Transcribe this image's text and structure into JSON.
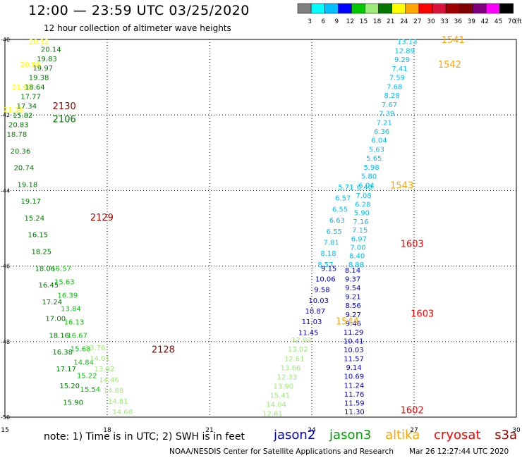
{
  "header": {
    "title": "12:00 — 23:59 UTC 03/25/2020",
    "subtitle": "12 hour collection of altimeter wave heights"
  },
  "colorbar": {
    "labels": [
      "3",
      "6",
      "9",
      "12",
      "15",
      "18",
      "21",
      "24",
      "27",
      "30",
      "33",
      "36",
      "39",
      "42",
      "45",
      "70"
    ],
    "unit": "(ft)",
    "colors": [
      "#808080",
      "#00ffff",
      "#00bfff",
      "#0000ff",
      "#00c800",
      "#9eea7b",
      "#007800",
      "#ffff00",
      "#ffa500",
      "#ff0000",
      "#dc143c",
      "#a00000",
      "#800000",
      "#800080",
      "#ff00ff",
      "#000000"
    ]
  },
  "note": "note:  1) Time is in UTC;  2) SWH is in feet",
  "legend": [
    {
      "name": "jason2",
      "color": "#0000cc"
    },
    {
      "name": "jason3",
      "color": "#00a000"
    },
    {
      "name": "altika",
      "color": "#ffa500"
    },
    {
      "name": "cryosat",
      "color": "#ff0000"
    },
    {
      "name": "s3a",
      "color": "#a00000"
    }
  ],
  "footer": {
    "credit": "NOAA/NESDIS Center for Satellite Applications and Research",
    "timestamp": "Mar 26 12:27:44 UTC 2020"
  },
  "chart_data": {
    "type": "scatter",
    "xlim": [
      15,
      30
    ],
    "ylim": [
      -50,
      -40
    ],
    "x_ticks": [
      "15",
      "18",
      "21",
      "24",
      "27",
      "30"
    ],
    "y_ticks": [
      "-50",
      "-48",
      "-46",
      "-44",
      "-42",
      "-40"
    ],
    "grid": true,
    "tracks": [
      {
        "x0": 16.0,
        "y0": -40.05,
        "x1": 15.25,
        "y1": -41.85,
        "color": "#ffff00",
        "values": [
          "20.12",
          "20.88",
          "21.82",
          "21.38"
        ],
        "show": [
          0,
          1,
          2,
          3
        ]
      },
      {
        "x0": 16.35,
        "y0": -40.25,
        "x1": 15.4,
        "y1": -42.25,
        "color": "#007800",
        "values": [
          "20.14",
          "19.83",
          "19.97",
          "19.38",
          "18.64",
          "17.77",
          "17.34",
          "15.82",
          "20.83"
        ],
        "show": [
          0,
          1,
          2,
          3,
          4,
          5,
          6,
          7,
          8
        ]
      },
      {
        "x0": 15.35,
        "y0": -42.5,
        "x1": 17.0,
        "y1": -49.6,
        "color": "#007800",
        "values": [
          "18.78",
          "20.36",
          "20.74",
          "19.18",
          "19.17",
          "15.24",
          "16.15",
          "18.25",
          "18.06",
          "16.45",
          "17.24",
          "17.00",
          "18.16",
          "16.38",
          "17.17",
          "15.20",
          "15.90"
        ],
        "show": []
      },
      {
        "x0": 16.65,
        "y0": -46.05,
        "x1": 17.5,
        "y1": -49.25,
        "color": "#00c800",
        "values": [
          "16.57",
          "15.63",
          "16.39",
          "13.84",
          "16.13",
          "16.67",
          "15.68",
          "14.84",
          "15.22",
          "15.54"
        ],
        "show": []
      },
      {
        "x0": 17.65,
        "y0": -48.15,
        "x1": 18.45,
        "y1": -49.85,
        "color": "#9eea7b",
        "values": [
          "13.76",
          "14.01",
          "13.02",
          "14.46",
          "14.88",
          "14.81",
          "14.68"
        ],
        "show": []
      },
      {
        "x0": 26.8,
        "y0": -40.05,
        "x1": 25.6,
        "y1": -43.85,
        "color": "#00bfff",
        "values": [
          "13.13",
          "12.89",
          "9.29",
          "7.41",
          "7.59",
          "7.68",
          "8.28",
          "7.67",
          "7.39",
          "7.21",
          "6.36",
          "6.04",
          "5.63",
          "5.65",
          "5.98",
          "5.80",
          "6.04"
        ],
        "show": []
      },
      {
        "x0": 25.55,
        "y0": -43.9,
        "x1": 25.3,
        "y1": -45.95,
        "color": "#00bfff",
        "values": [
          "6.40",
          "7.08",
          "6.28",
          "5.90",
          "7.16",
          "7.15",
          "6.97",
          "7.00",
          "8.40",
          "8.88"
        ],
        "show": []
      },
      {
        "x0": 25.2,
        "y0": -46.1,
        "x1": 25.25,
        "y1": -49.85,
        "color": "#0000cc",
        "values": [
          "8.14",
          "9.37",
          "9.54",
          "9.21",
          "8.56",
          "9.27",
          "9.46",
          "11.29",
          "10.41",
          "10.03",
          "11.57",
          "9.14",
          "10.69",
          "11.24",
          "11.76",
          "11.59",
          "11.30"
        ],
        "show": []
      },
      {
        "x0": 25.0,
        "y0": -43.9,
        "x1": 24.4,
        "y1": -45.95,
        "color": "#00bfff",
        "values": [
          "5.71",
          "6.57",
          "6.55",
          "6.63",
          "6.55",
          "7.81",
          "8.18",
          "8.57"
        ],
        "show": []
      },
      {
        "x0": 24.5,
        "y0": -46.05,
        "x1": 23.9,
        "y1": -47.75,
        "color": "#0000cc",
        "values": [
          "9.15",
          "10.06",
          "9.58",
          "10.03",
          "10.87",
          "11.03",
          "11.45"
        ],
        "show": []
      },
      {
        "x0": 23.7,
        "y0": -47.95,
        "x1": 22.85,
        "y1": -49.9,
        "color": "#9eea7b",
        "values": [
          "12.02",
          "13.02",
          "12.61",
          "13.66",
          "12.33",
          "13.90",
          "15.41",
          "14.04",
          "12.61"
        ],
        "show": []
      }
    ],
    "times": [
      {
        "label": "2130",
        "x": 16.4,
        "y": -41.75,
        "color": "#a00000"
      },
      {
        "label": "2106",
        "x": 16.4,
        "y": -42.1,
        "color": "#007800"
      },
      {
        "label": "2129",
        "x": 17.5,
        "y": -44.7,
        "color": "#a00000"
      },
      {
        "label": "2128",
        "x": 19.3,
        "y": -48.2,
        "color": "#a00000"
      },
      {
        "label": "1541",
        "x": 27.8,
        "y": -40.0,
        "color": "#ffa500"
      },
      {
        "label": "1542",
        "x": 27.7,
        "y": -40.65,
        "color": "#ffa500"
      },
      {
        "label": "1543",
        "x": 26.3,
        "y": -43.85,
        "color": "#ffa500"
      },
      {
        "label": "1603",
        "x": 26.6,
        "y": -45.4,
        "color": "#ff0000"
      },
      {
        "label": "1603",
        "x": 26.9,
        "y": -47.25,
        "color": "#ff0000"
      },
      {
        "label": "1544",
        "x": 24.7,
        "y": -47.45,
        "color": "#ffa500"
      },
      {
        "label": "1602",
        "x": 26.6,
        "y": -49.8,
        "color": "#ff0000"
      }
    ]
  }
}
